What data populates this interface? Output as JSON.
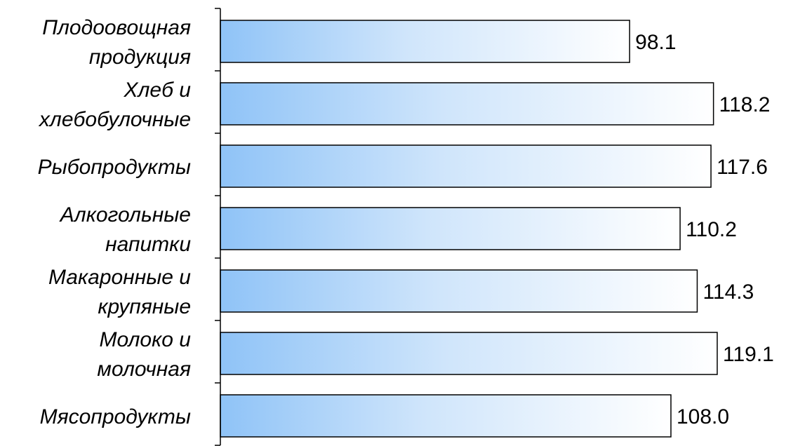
{
  "chart_data": {
    "type": "bar",
    "orientation": "horizontal",
    "categories": [
      [
        "Плодоовощная",
        "продукция"
      ],
      [
        "Хлеб и",
        "хлебобулочные"
      ],
      [
        "Рыбопродукты"
      ],
      [
        "Алкогольные",
        "напитки"
      ],
      [
        "Макаронные и",
        "крупяные"
      ],
      [
        "Молоко и",
        "молочная"
      ],
      [
        "Мясопродукты"
      ]
    ],
    "values": [
      98.1,
      118.2,
      117.6,
      110.2,
      114.3,
      119.1,
      108.0
    ],
    "value_labels": [
      "98.1",
      "118.2",
      "117.6",
      "110.2",
      "114.3",
      "119.1",
      "108.0"
    ],
    "xlim": [
      0,
      119.1
    ],
    "title": "",
    "xlabel": "",
    "ylabel": "",
    "grid": false,
    "legend": "none",
    "colors": {
      "bar_gradient_start": "#8fc3f7",
      "bar_gradient_end": "#ffffff",
      "bar_stroke": "#000000",
      "axis": "#000000"
    }
  }
}
